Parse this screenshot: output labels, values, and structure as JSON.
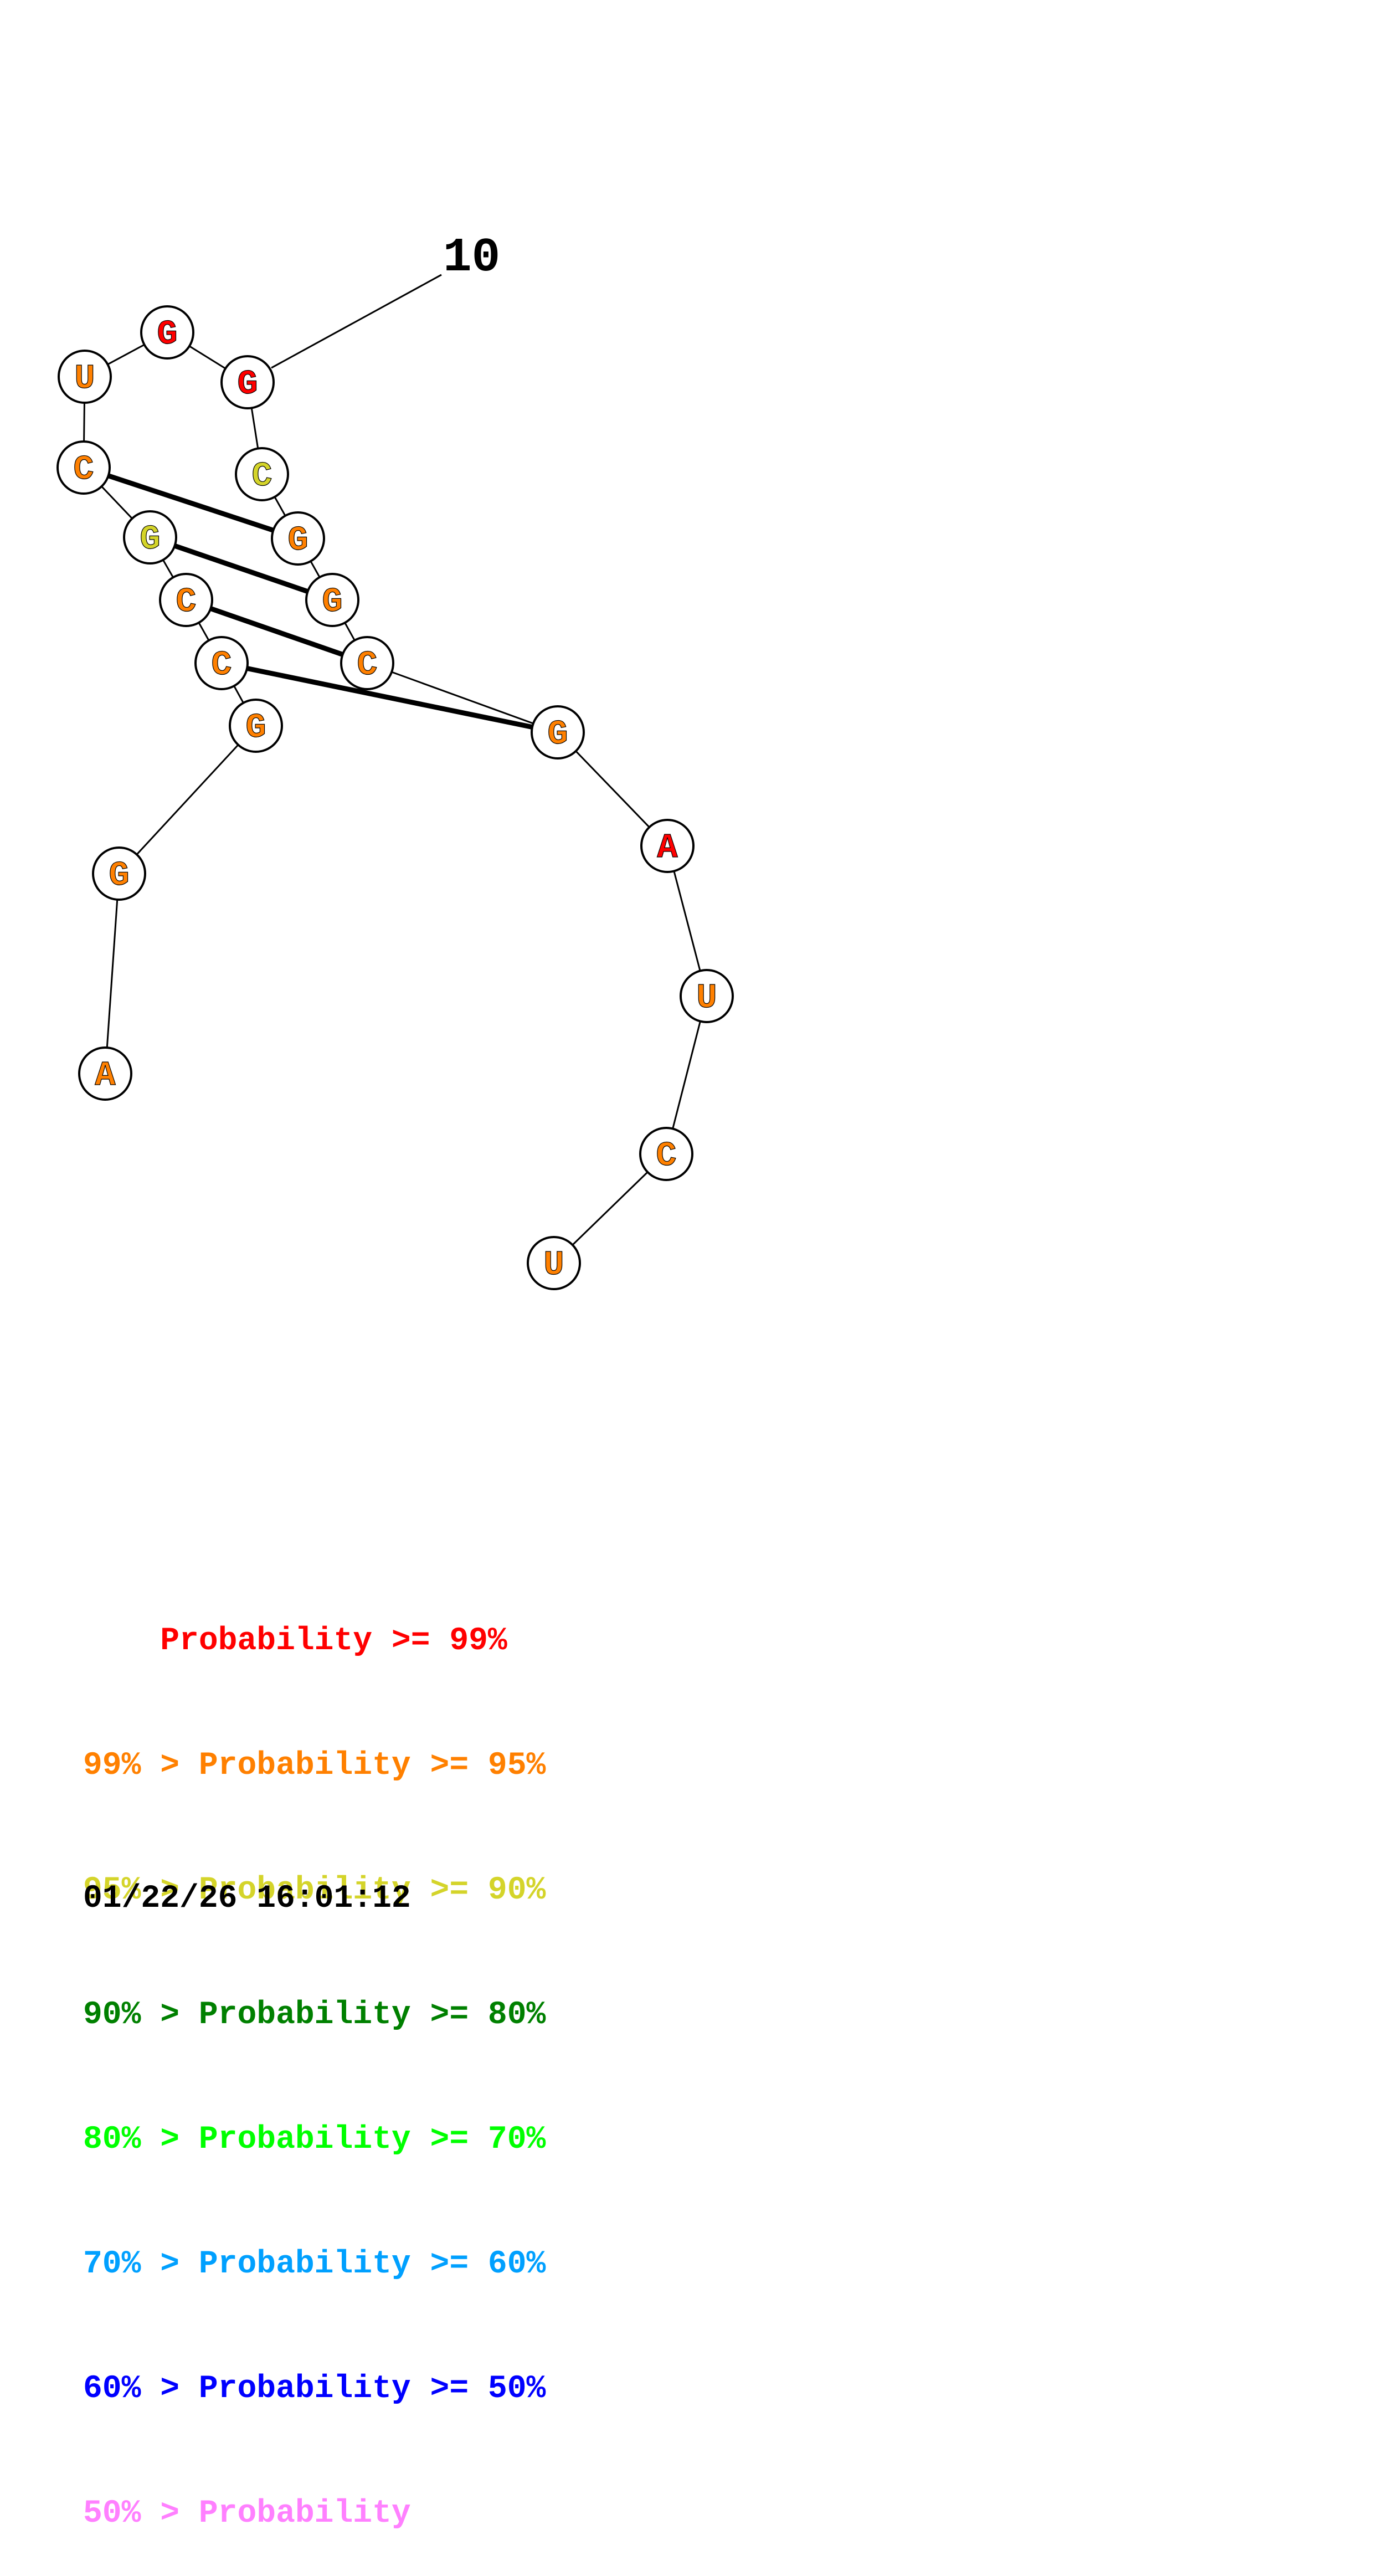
{
  "colors": {
    "p99": "#ff0000",
    "p95": "#ff8000",
    "p90": "#d4d42a",
    "p80": "#008000",
    "p70": "#00ff00",
    "p60": "#00a0ff",
    "p50": "#0000ff",
    "plow": "#ff80ff"
  },
  "structure": {
    "position_label": "10",
    "nucleotides": [
      {
        "base": "A",
        "prob_class": "p95"
      },
      {
        "base": "G",
        "prob_class": "p95"
      },
      {
        "base": "G",
        "prob_class": "p95"
      },
      {
        "base": "C",
        "prob_class": "p95"
      },
      {
        "base": "C",
        "prob_class": "p95"
      },
      {
        "base": "G",
        "prob_class": "p90"
      },
      {
        "base": "C",
        "prob_class": "p95"
      },
      {
        "base": "U",
        "prob_class": "p95"
      },
      {
        "base": "G",
        "prob_class": "p99"
      },
      {
        "base": "G",
        "prob_class": "p99"
      },
      {
        "base": "C",
        "prob_class": "p90"
      },
      {
        "base": "G",
        "prob_class": "p95"
      },
      {
        "base": "G",
        "prob_class": "p95"
      },
      {
        "base": "C",
        "prob_class": "p95"
      },
      {
        "base": "G",
        "prob_class": "p95"
      },
      {
        "base": "A",
        "prob_class": "p99"
      },
      {
        "base": "U",
        "prob_class": "p95"
      },
      {
        "base": "C",
        "prob_class": "p95"
      },
      {
        "base": "U",
        "prob_class": "p95"
      }
    ],
    "base_pairs": [
      [
        3,
        14
      ],
      [
        4,
        13
      ],
      [
        5,
        12
      ],
      [
        6,
        11
      ]
    ]
  },
  "legend": {
    "rows": [
      {
        "prefix": "    ",
        "text": "Probability >= 99%",
        "color_key": "p99"
      },
      {
        "prefix": "99% > ",
        "text": "Probability >= 95%",
        "color_key": "p95"
      },
      {
        "prefix": "95% > ",
        "text": "Probability >= 90%",
        "color_key": "p90"
      },
      {
        "prefix": "90% > ",
        "text": "Probability >= 80%",
        "color_key": "p80"
      },
      {
        "prefix": "80% > ",
        "text": "Probability >= 70%",
        "color_key": "p70"
      },
      {
        "prefix": "70% > ",
        "text": "Probability >= 60%",
        "color_key": "p60"
      },
      {
        "prefix": "60% > ",
        "text": "Probability >= 50%",
        "color_key": "p50"
      },
      {
        "prefix": "50% > ",
        "text": "Probability",
        "color_key": "plow"
      }
    ]
  },
  "timestamp": "01/22/26 16:01:12"
}
